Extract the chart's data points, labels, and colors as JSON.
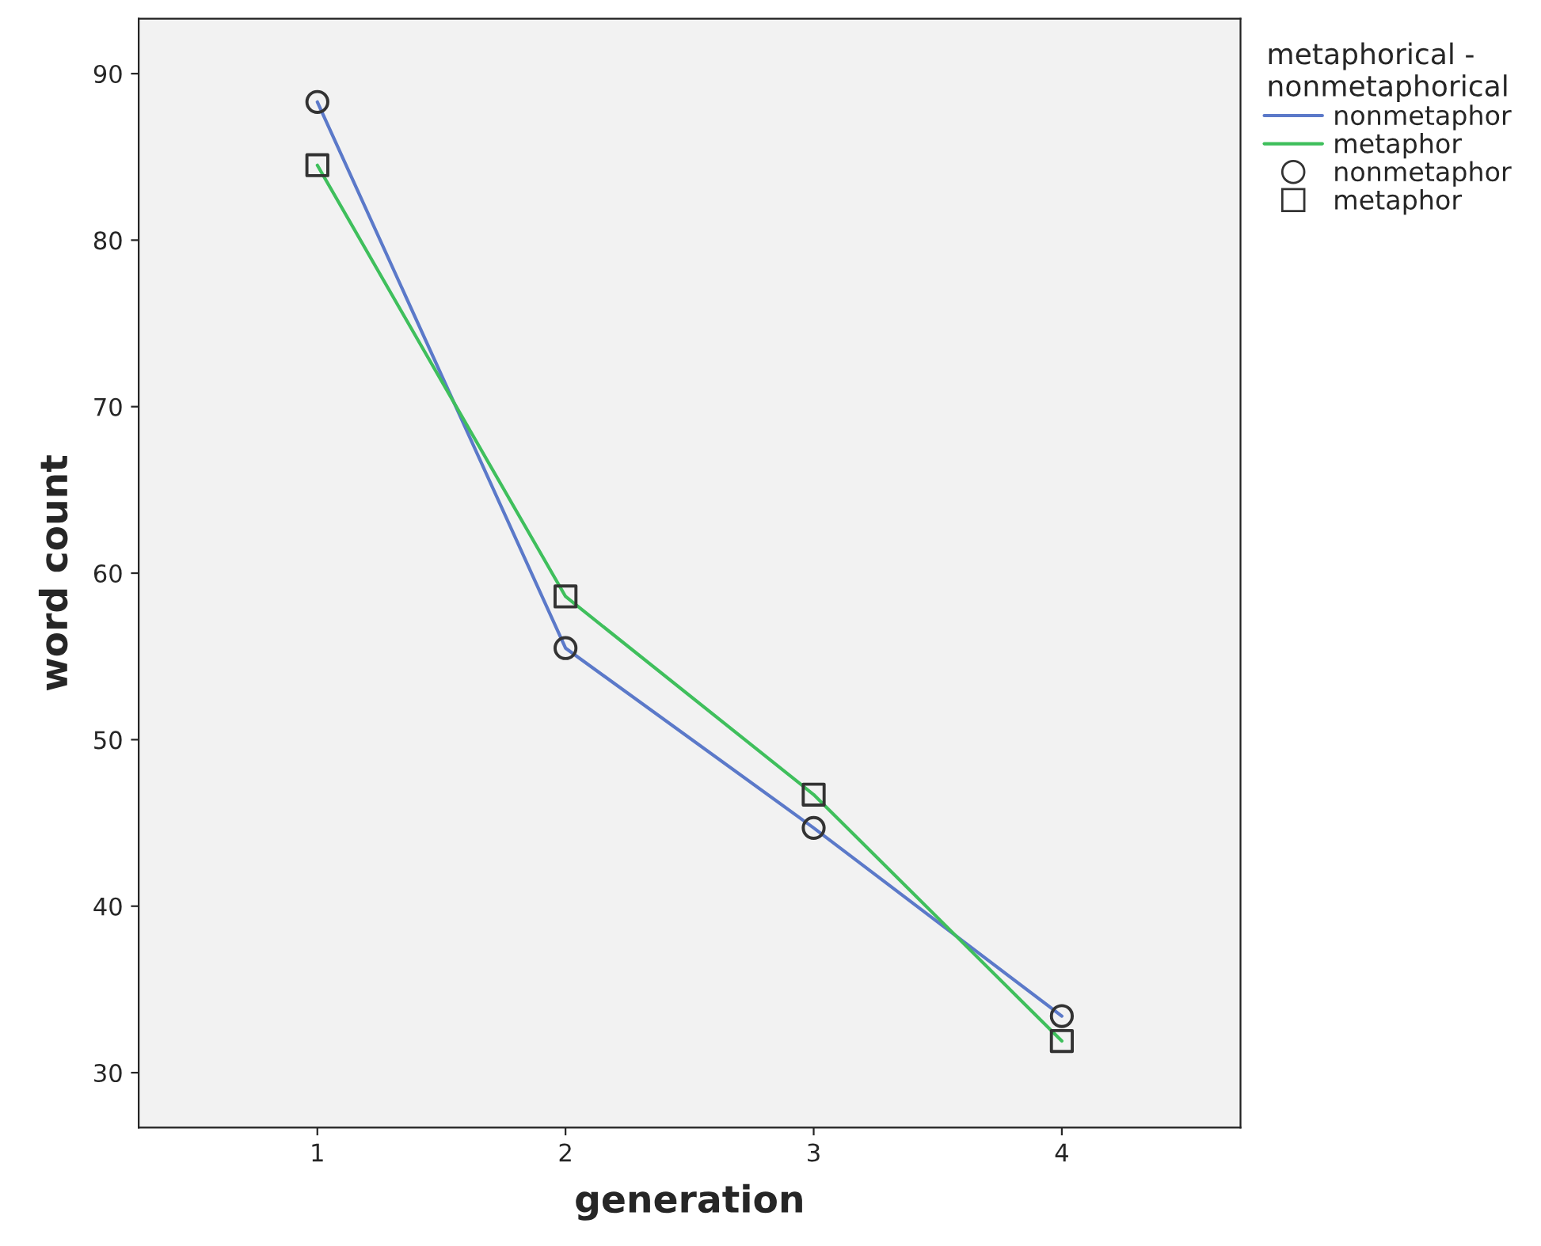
{
  "chart_data": {
    "type": "line",
    "xlabel": "generation",
    "ylabel": "word count",
    "legend_title": "metaphorical -\nnonmetaphorical",
    "x": [
      1,
      2,
      3,
      4
    ],
    "series": [
      {
        "name": "nonmetaphor",
        "color": "#5b79c9",
        "marker": "circle",
        "values": [
          88.3,
          55.5,
          44.7,
          33.4
        ]
      },
      {
        "name": "metaphor",
        "color": "#3fbf5c",
        "marker": "square",
        "values": [
          84.5,
          58.6,
          46.7,
          31.9
        ]
      }
    ],
    "xlim": [
      0.28,
      4.72
    ],
    "xticks": [
      1,
      2,
      3,
      4
    ],
    "ylim": [
      26.7,
      93.3
    ],
    "yticks": [
      30,
      40,
      50,
      60,
      70,
      80,
      90
    ],
    "grid": false,
    "legend": "top right",
    "line_style": "solid"
  }
}
